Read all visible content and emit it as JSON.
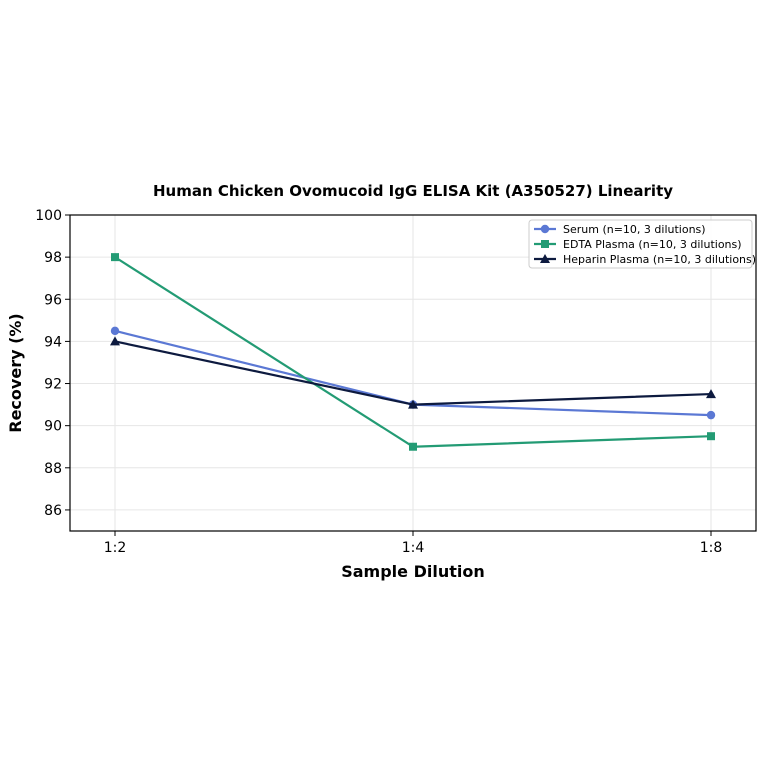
{
  "chart_data": {
    "type": "line",
    "title": "Human Chicken Ovomucoid IgG ELISA Kit (A350527) Linearity",
    "xlabel": "Sample Dilution",
    "ylabel": "Recovery (%)",
    "categories": [
      "1:2",
      "1:4",
      "1:8"
    ],
    "ylim": [
      85,
      100
    ],
    "yticks": [
      86,
      88,
      90,
      92,
      94,
      96,
      98,
      100
    ],
    "grid": true,
    "legend_position": "top-right",
    "series": [
      {
        "name": "Serum (n=10, 3 dilutions)",
        "values": [
          94.5,
          91.0,
          90.5
        ],
        "color": "#5b78d4",
        "marker": "circle"
      },
      {
        "name": "EDTA Plasma (n=10, 3 dilutions)",
        "values": [
          98.0,
          89.0,
          89.5
        ],
        "color": "#239b74",
        "marker": "square"
      },
      {
        "name": "Heparin Plasma (n=10, 3 dilutions)",
        "values": [
          94.0,
          91.0,
          91.5
        ],
        "color": "#0d1a3f",
        "marker": "triangle"
      }
    ]
  }
}
